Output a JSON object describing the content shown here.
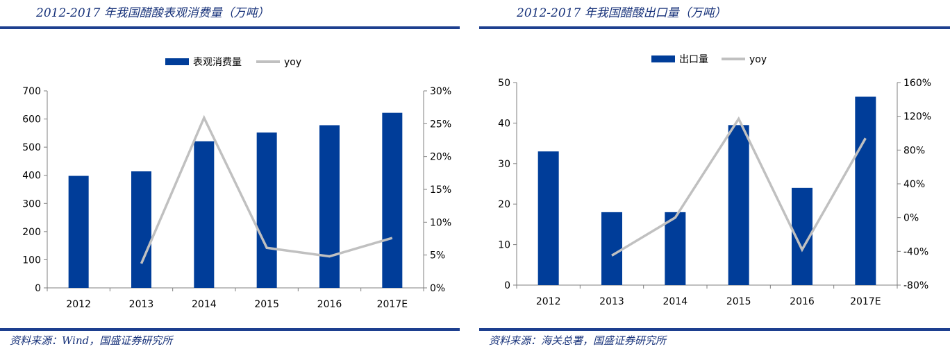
{
  "panels": [
    {
      "title": "2012-2017 年我国醋酸表观消费量（万吨）",
      "source": "资料来源：Wind，国盛证券研究所",
      "chart_data": {
        "type": "bar",
        "categories": [
          "2012",
          "2013",
          "2014",
          "2015",
          "2016",
          "2017E"
        ],
        "series": [
          {
            "name": "表观消费量",
            "kind": "bar",
            "axis": "left",
            "color": "#003d99",
            "values": [
              398,
              414,
              521,
              552,
              578,
              622
            ]
          },
          {
            "name": "yoy",
            "kind": "line",
            "axis": "right",
            "color": "#c0c0c0",
            "values": [
              null,
              3.7,
              25.9,
              6.1,
              4.8,
              7.6
            ]
          }
        ],
        "y_left": {
          "min": 0,
          "max": 700,
          "ticks": [
            0,
            100,
            200,
            300,
            400,
            500,
            600,
            700
          ]
        },
        "y_right": {
          "min": 0,
          "max": 30,
          "ticks": [
            0,
            5,
            10,
            15,
            20,
            25,
            30
          ],
          "unit": "%"
        },
        "legend_position": "top-center",
        "grid": false
      }
    },
    {
      "title": "2012-2017 年我国醋酸出口量（万吨）",
      "source": "资料来源：海关总署，国盛证券研究所",
      "chart_data": {
        "type": "bar",
        "categories": [
          "2012",
          "2013",
          "2014",
          "2015",
          "2016",
          "2017E"
        ],
        "series": [
          {
            "name": "出口量",
            "kind": "bar",
            "axis": "left",
            "color": "#003d99",
            "values": [
              33,
              18,
              18,
              39.5,
              24,
              46.5
            ]
          },
          {
            "name": "yoy",
            "kind": "line",
            "axis": "right",
            "color": "#c0c0c0",
            "values": [
              null,
              -45,
              0,
              117,
              -38,
              94
            ]
          }
        ],
        "y_left": {
          "min": 0,
          "max": 50,
          "ticks": [
            0,
            10,
            20,
            30,
            40,
            50
          ]
        },
        "y_right": {
          "min": -80,
          "max": 160,
          "ticks": [
            -80,
            -40,
            0,
            40,
            80,
            120,
            160
          ],
          "unit": "%"
        },
        "legend_position": "top-center",
        "grid": false
      }
    }
  ]
}
